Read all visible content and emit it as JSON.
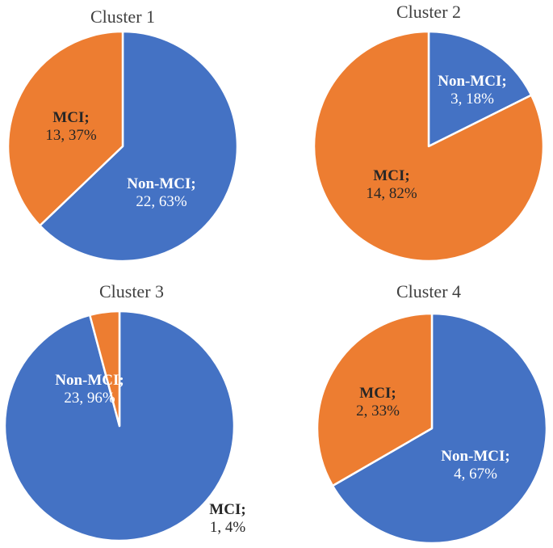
{
  "colors": {
    "non_mci": "#4472C4",
    "mci": "#ED7D31",
    "slice_border": "#ffffff"
  },
  "chart_data": [
    {
      "type": "pie",
      "title": "Cluster 1",
      "slices": [
        {
          "label": "Non-MCI",
          "value": 22,
          "percent": "63%",
          "color": "#4472C4"
        },
        {
          "label": "MCI",
          "value": 13,
          "percent": "37%",
          "color": "#ED7D31"
        }
      ]
    },
    {
      "type": "pie",
      "title": "Cluster 2",
      "slices": [
        {
          "label": "Non-MCI",
          "value": 3,
          "percent": "18%",
          "color": "#4472C4"
        },
        {
          "label": "MCI",
          "value": 14,
          "percent": "82%",
          "color": "#ED7D31"
        }
      ]
    },
    {
      "type": "pie",
      "title": "Cluster 3",
      "slices": [
        {
          "label": "Non-MCI",
          "value": 23,
          "percent": "96%",
          "color": "#4472C4"
        },
        {
          "label": "MCI",
          "value": 1,
          "percent": "4%",
          "color": "#ED7D31"
        }
      ]
    },
    {
      "type": "pie",
      "title": "Cluster 4",
      "slices": [
        {
          "label": "Non-MCI",
          "value": 4,
          "percent": "67%",
          "color": "#4472C4"
        },
        {
          "label": "MCI",
          "value": 2,
          "percent": "33%",
          "color": "#ED7D31"
        }
      ]
    }
  ]
}
